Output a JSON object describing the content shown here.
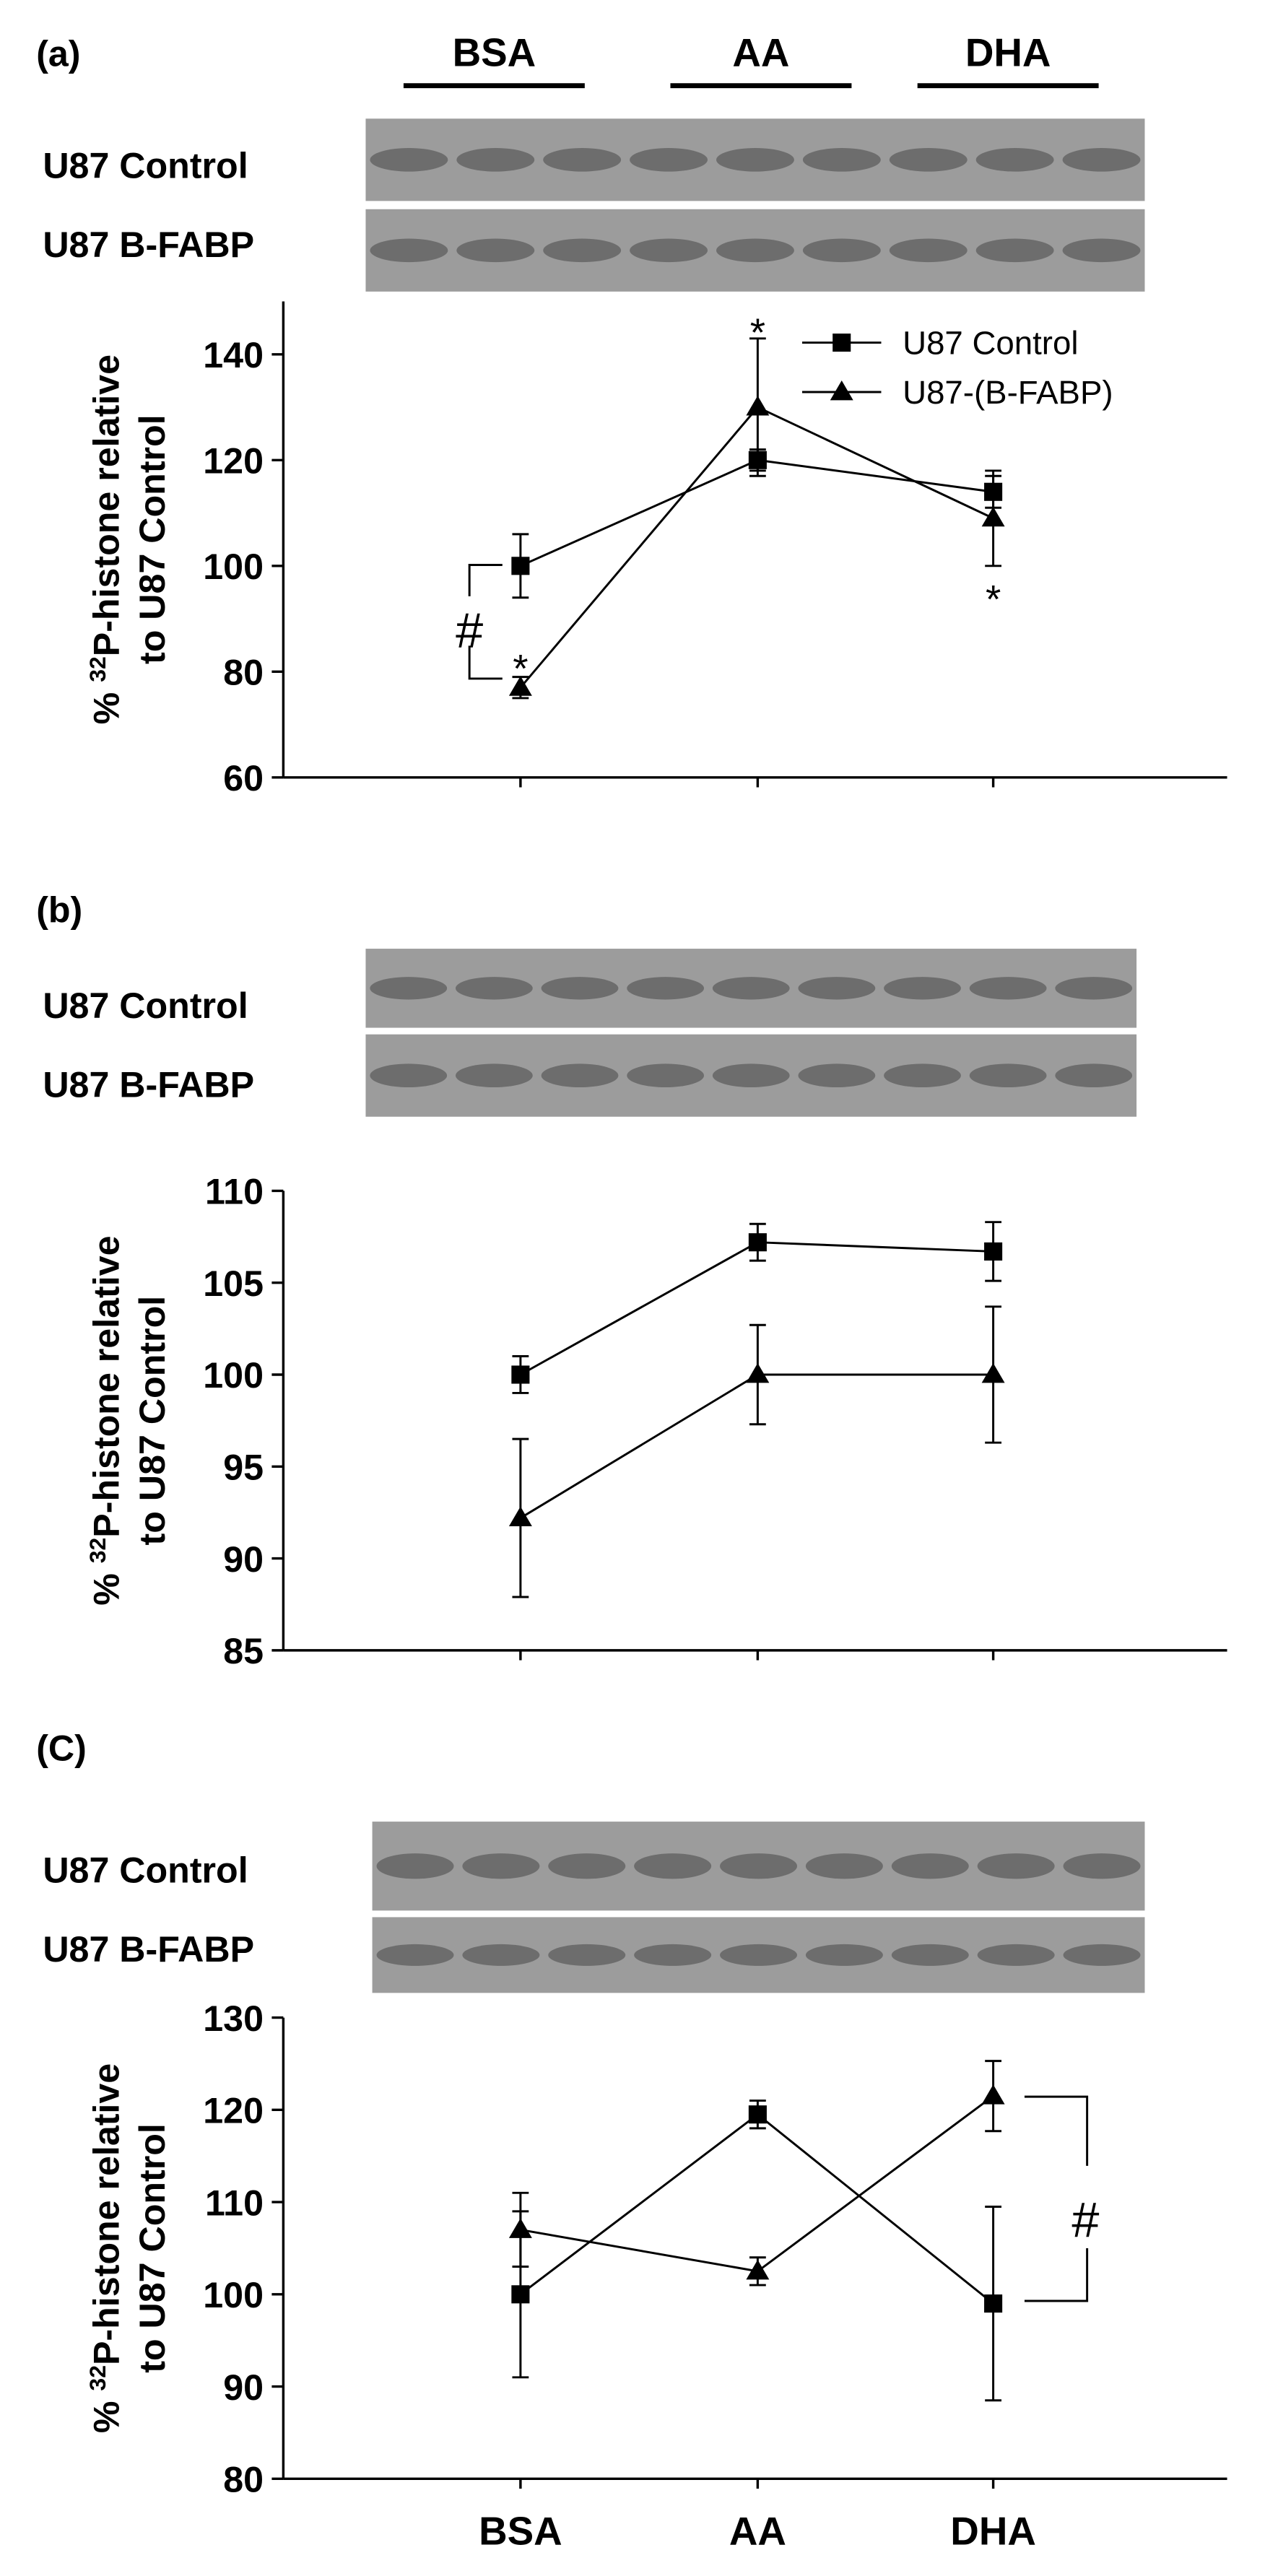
{
  "chart_data": [
    {
      "type": "line",
      "panel_label": "(a)",
      "blot_groups": [
        "BSA",
        "AA",
        "DHA"
      ],
      "blot_rows": [
        "U87 Control",
        "U87 B-FABP"
      ],
      "y_label": {
        "prefix": "% ",
        "superscript": "32",
        "line1": "P-histone relative",
        "line2": "to U87 Control"
      },
      "categories": [
        null,
        null,
        null
      ],
      "ylim": [
        60,
        150
      ],
      "yticks": [
        60,
        80,
        100,
        120,
        140
      ],
      "series": [
        {
          "name": "U87 Control",
          "color": "#000000",
          "marker": "square",
          "values": [
            100,
            120,
            114
          ],
          "errors": [
            6,
            2,
            3
          ]
        },
        {
          "name": "U87-(B-FABP)",
          "color": "#000000",
          "marker": "triangle",
          "values": [
            77,
            130,
            109
          ],
          "errors": [
            2,
            13,
            9
          ]
        }
      ],
      "annotations": [
        "*",
        "*",
        "*",
        "#"
      ]
    },
    {
      "type": "line",
      "panel_label": "(b)",
      "blot_rows": [
        "U87 Control",
        "U87 B-FABP"
      ],
      "y_label": {
        "prefix": "% ",
        "superscript": "32",
        "line1": "P-histone relative",
        "line2": "to U87 Control"
      },
      "categories": [
        null,
        null,
        null
      ],
      "ylim": [
        85,
        110
      ],
      "yticks": [
        85,
        90,
        95,
        100,
        105,
        110
      ],
      "series": [
        {
          "color": "#000000",
          "marker": "square",
          "values": [
            100,
            107.2,
            106.7
          ],
          "errors": [
            1,
            1,
            1.6
          ]
        },
        {
          "color": "#000000",
          "marker": "triangle",
          "values": [
            92.2,
            100,
            100
          ],
          "errors": [
            4.3,
            2.7,
            3.7
          ]
        }
      ]
    },
    {
      "type": "line",
      "panel_label": "(C)",
      "blot_rows": [
        "U87 Control",
        "U87 B-FABP"
      ],
      "y_label": {
        "prefix": "% ",
        "superscript": "32",
        "line1": "P-histone relative",
        "line2": "to U87 Control"
      },
      "categories": [
        "BSA",
        "AA",
        "DHA"
      ],
      "ylim": [
        80,
        130
      ],
      "yticks": [
        80,
        90,
        100,
        110,
        120,
        130
      ],
      "series": [
        {
          "color": "#000000",
          "marker": "square",
          "values": [
            100,
            119.5,
            99
          ],
          "errors": [
            9,
            1.5,
            10.5
          ]
        },
        {
          "color": "#000000",
          "marker": "triangle",
          "values": [
            107,
            102.5,
            121.5
          ],
          "errors": [
            4,
            1.5,
            3.8
          ]
        }
      ],
      "annotations": [
        "#"
      ]
    }
  ]
}
